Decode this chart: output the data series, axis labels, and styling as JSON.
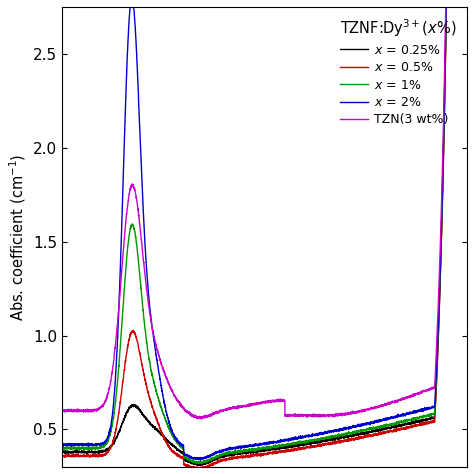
{
  "ylabel": "Abs. coefficient (cm$^{-1}$)",
  "ylim": [
    0.3,
    2.75
  ],
  "yticks": [
    0.5,
    1.0,
    1.5,
    2.0,
    2.5
  ],
  "legend_title": "TZNF:Dy$^{3+}$($x$%)",
  "legend_entries": [
    {
      "label": "$x$ = 0.25%",
      "color": "#000000"
    },
    {
      "label": "$x$ = 0.5%",
      "color": "#cc0000"
    },
    {
      "label": "$x$ = 1%",
      "color": "#009900"
    },
    {
      "label": "$x$ = 2%",
      "color": "#0000cc"
    },
    {
      "label": "TZN(3 wt%)",
      "color": "#cc00cc"
    }
  ],
  "series_colors": [
    "#000000",
    "#cc0000",
    "#009900",
    "#0000cc",
    "#cc00cc"
  ],
  "background_color": "#ffffff"
}
